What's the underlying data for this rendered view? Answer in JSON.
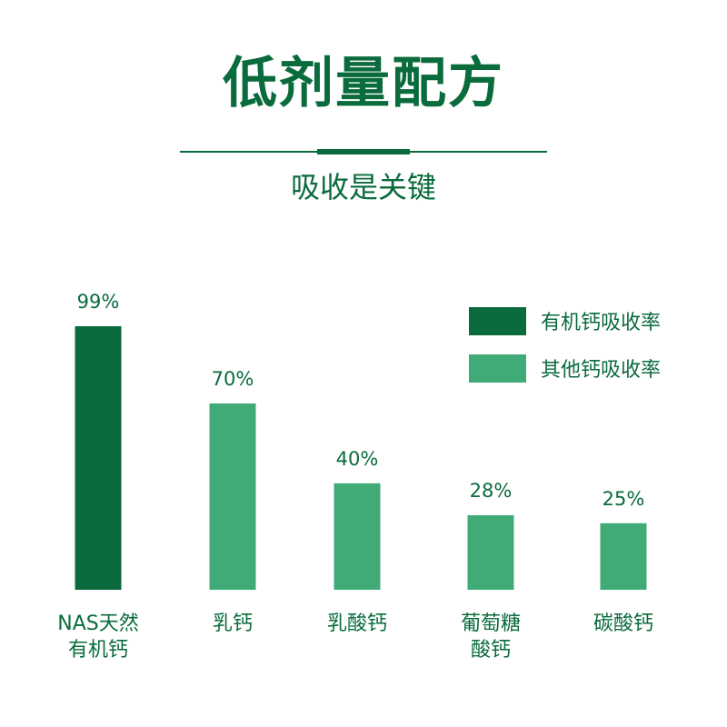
{
  "header": {
    "title": "低剂量配方",
    "subtitle": "吸收是关键"
  },
  "colors": {
    "primary": "#0a6b3c",
    "secondary": "#41ab77"
  },
  "legend": {
    "items": [
      {
        "label": "有机钙吸收率",
        "color": "#0a6b3c"
      },
      {
        "label": "其他钙吸收率",
        "color": "#41ab77"
      }
    ]
  },
  "chart_data": {
    "type": "bar",
    "categories": [
      "NAS天然\n有机钙",
      "乳钙",
      "乳酸钙",
      "葡萄糖\n酸钙",
      "碳酸钙"
    ],
    "values": [
      99,
      70,
      40,
      28,
      25
    ],
    "value_labels": [
      "99%",
      "70%",
      "40%",
      "28%",
      "25%"
    ],
    "bar_colors": [
      "#0a6b3c",
      "#41ab77",
      "#41ab77",
      "#41ab77",
      "#41ab77"
    ],
    "series": [
      {
        "name": "有机钙吸收率",
        "categories": [
          "NAS天然\n有机钙"
        ]
      },
      {
        "name": "其他钙吸收率",
        "categories": [
          "乳钙",
          "乳酸钙",
          "葡萄糖\n酸钙",
          "碳酸钙"
        ]
      }
    ],
    "ylim": [
      0,
      100
    ],
    "grid": false,
    "legend_position": "top-right",
    "xlabel": "",
    "ylabel": ""
  }
}
